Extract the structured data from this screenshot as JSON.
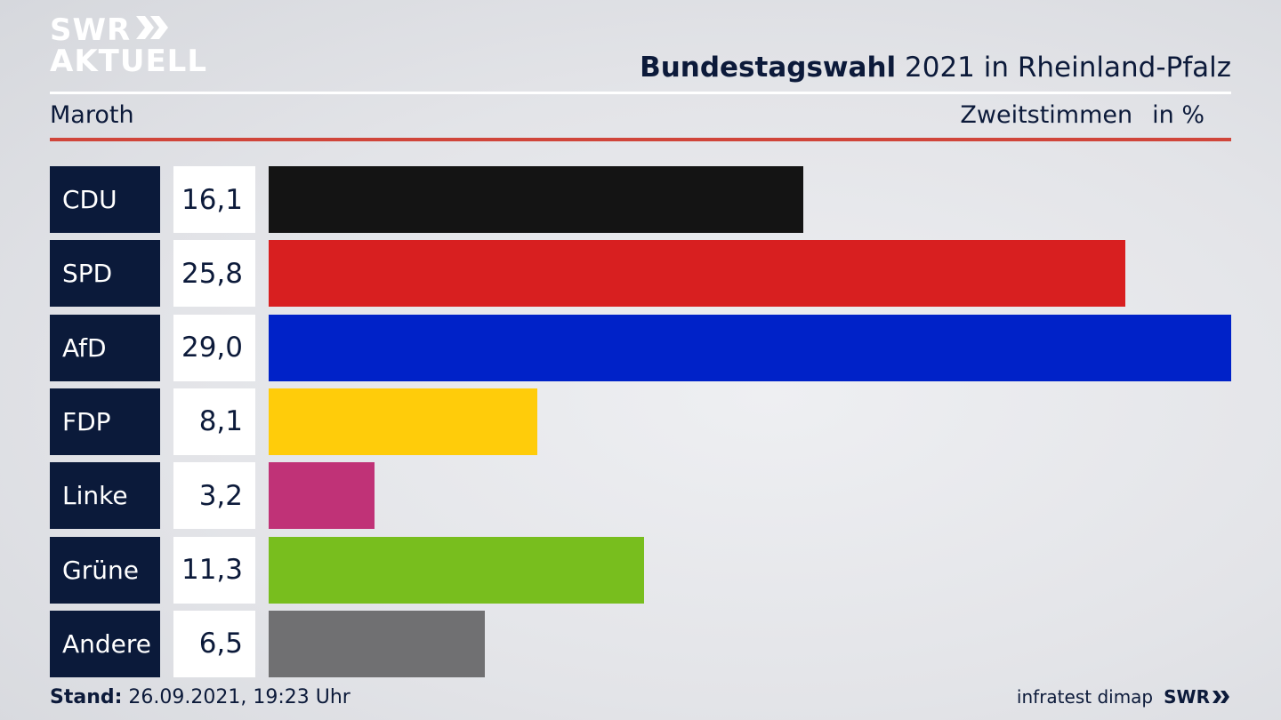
{
  "brand": {
    "logo_line1": "SWR",
    "logo_line2": "AKTUELL"
  },
  "header": {
    "title_bold": "Bundestagswahl",
    "title_rest": " 2021 in Rheinland-Pfalz",
    "location": "Maroth",
    "measure": "Zweitstimmen",
    "unit": "in %"
  },
  "footer": {
    "stand_label": "Stand:",
    "stand_value": " 26.09.2021, 19:23 Uhr",
    "source": "infratest dimap",
    "broadcaster": "SWR"
  },
  "chart_data": {
    "type": "bar",
    "orientation": "horizontal",
    "categories": [
      "CDU",
      "SPD",
      "AfD",
      "FDP",
      "Linke",
      "Grüne",
      "Andere"
    ],
    "values": [
      16.1,
      25.8,
      29.0,
      8.1,
      3.2,
      11.3,
      6.5
    ],
    "value_labels": [
      "16,1",
      "25,8",
      "29,0",
      "8,1",
      "3,2",
      "11,3",
      "6,5"
    ],
    "colors": [
      "#141414",
      "#d81f20",
      "#0022c8",
      "#ffcc0a",
      "#c03277",
      "#78be1e",
      "#707072"
    ],
    "xlim": [
      0,
      29.0
    ],
    "grid": false
  }
}
